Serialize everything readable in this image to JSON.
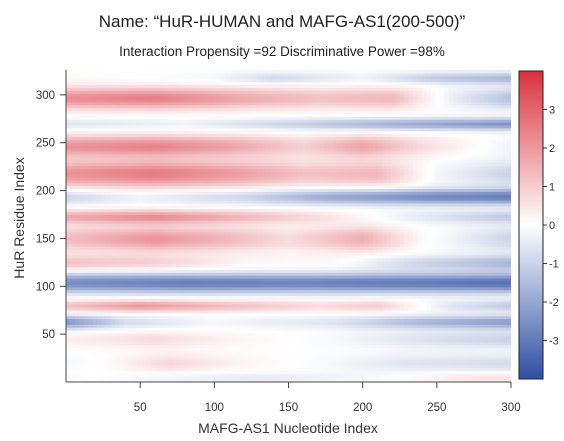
{
  "chart_data": {
    "type": "heatmap",
    "title": "Name: “HuR-HUMAN and MAFG-AS1(200-500)”",
    "subtitle": "Interaction Propensity =92  Discriminative Power =98%",
    "xlabel": "MAFG-AS1 Nucleotide Index",
    "ylabel": "HuR Residue Index",
    "xlim": [
      0,
      300
    ],
    "ylim": [
      0,
      326
    ],
    "x_ticks": [
      50,
      100,
      150,
      200,
      250,
      300
    ],
    "y_ticks": [
      50,
      100,
      150,
      200,
      250,
      300
    ],
    "colorbar": {
      "range": [
        -4,
        4
      ],
      "ticks": [
        -3,
        -2,
        -1,
        0,
        1,
        2,
        3
      ],
      "colors": {
        "low": "#2d4ea3",
        "mid": "#ffffff",
        "high": "#d9323c"
      }
    },
    "bands": [
      {
        "y": 5,
        "h": 6,
        "amp": -0.8,
        "profile": [
          [
            0,
            -0.2
          ],
          [
            60,
            0.4
          ],
          [
            130,
            0.6
          ],
          [
            200,
            0.2
          ],
          [
            260,
            -0.6
          ],
          [
            300,
            -0.8
          ]
        ]
      },
      {
        "y": 20,
        "h": 10,
        "amp": 0.5,
        "profile": [
          [
            0,
            -0.3
          ],
          [
            30,
            0.2
          ],
          [
            70,
            1.6
          ],
          [
            110,
            0.6
          ],
          [
            170,
            -0.2
          ],
          [
            230,
            -1.2
          ],
          [
            300,
            -1.6
          ]
        ]
      },
      {
        "y": 45,
        "h": 9,
        "amp": 0.5,
        "profile": [
          [
            0,
            0.6
          ],
          [
            60,
            1.4
          ],
          [
            110,
            0.5
          ],
          [
            180,
            -0.3
          ],
          [
            250,
            -1.5
          ],
          [
            300,
            -2.0
          ]
        ]
      },
      {
        "y": 63,
        "h": 7,
        "amp": 1,
        "profile": [
          [
            0,
            -2.4
          ],
          [
            40,
            -0.8
          ],
          [
            100,
            -0.2
          ],
          [
            180,
            -0.6
          ],
          [
            240,
            -1.6
          ],
          [
            300,
            -2.2
          ]
        ]
      },
      {
        "y": 80,
        "h": 6,
        "amp": 1,
        "profile": [
          [
            0,
            1.2
          ],
          [
            50,
            2.0
          ],
          [
            110,
            1.3
          ],
          [
            170,
            0.7
          ],
          [
            210,
            1.0
          ],
          [
            260,
            -0.6
          ],
          [
            300,
            -1.2
          ]
        ]
      },
      {
        "y": 104,
        "h": 10,
        "amp": 1,
        "profile": [
          [
            0,
            -2.6
          ],
          [
            80,
            -2.9
          ],
          [
            160,
            -2.8
          ],
          [
            240,
            -3.0
          ],
          [
            300,
            -3.2
          ]
        ]
      },
      {
        "y": 125,
        "h": 8,
        "amp": 1,
        "profile": [
          [
            0,
            1.2
          ],
          [
            60,
            0.9
          ],
          [
            120,
            0.2
          ],
          [
            180,
            0.1
          ],
          [
            230,
            -0.8
          ],
          [
            300,
            -1.6
          ]
        ]
      },
      {
        "y": 150,
        "h": 13,
        "amp": 1,
        "profile": [
          [
            0,
            1.3
          ],
          [
            60,
            2.1
          ],
          [
            110,
            1.4
          ],
          [
            150,
            0.7
          ],
          [
            200,
            1.6
          ],
          [
            240,
            0.1
          ],
          [
            300,
            -1.0
          ]
        ]
      },
      {
        "y": 173,
        "h": 7,
        "amp": 1,
        "profile": [
          [
            0,
            1.6
          ],
          [
            60,
            2.2
          ],
          [
            110,
            1.5
          ],
          [
            170,
            0.6
          ],
          [
            230,
            -0.4
          ],
          [
            300,
            -1.2
          ]
        ]
      },
      {
        "y": 194,
        "h": 8,
        "amp": 1,
        "profile": [
          [
            0,
            -1.0
          ],
          [
            50,
            -0.4
          ],
          [
            120,
            -1.0
          ],
          [
            180,
            -2.0
          ],
          [
            240,
            -2.6
          ],
          [
            300,
            -2.9
          ]
        ]
      },
      {
        "y": 218,
        "h": 14,
        "amp": 1,
        "profile": [
          [
            0,
            2.1
          ],
          [
            60,
            2.6
          ],
          [
            110,
            2.0
          ],
          [
            160,
            1.2
          ],
          [
            210,
            1.4
          ],
          [
            250,
            -0.2
          ],
          [
            300,
            -1.0
          ]
        ]
      },
      {
        "y": 247,
        "h": 11,
        "amp": 1,
        "profile": [
          [
            0,
            2.1
          ],
          [
            60,
            2.4
          ],
          [
            110,
            1.8
          ],
          [
            160,
            0.9
          ],
          [
            200,
            1.8
          ],
          [
            240,
            0.7
          ],
          [
            300,
            -0.3
          ]
        ]
      },
      {
        "y": 270,
        "h": 6,
        "amp": 1,
        "profile": [
          [
            0,
            -0.6
          ],
          [
            80,
            -0.3
          ],
          [
            150,
            -1.0
          ],
          [
            220,
            -1.8
          ],
          [
            300,
            -2.4
          ]
        ]
      },
      {
        "y": 297,
        "h": 11,
        "amp": 1,
        "profile": [
          [
            0,
            2.2
          ],
          [
            60,
            2.5
          ],
          [
            120,
            1.7
          ],
          [
            170,
            1.2
          ],
          [
            220,
            1.4
          ],
          [
            260,
            -0.4
          ],
          [
            300,
            -1.4
          ]
        ]
      },
      {
        "y": 318,
        "h": 6,
        "amp": 1,
        "profile": [
          [
            0,
            0.1
          ],
          [
            100,
            -0.2
          ],
          [
            140,
            -0.9
          ],
          [
            200,
            -0.3
          ],
          [
            250,
            -1.2
          ],
          [
            300,
            -1.6
          ]
        ]
      }
    ]
  }
}
